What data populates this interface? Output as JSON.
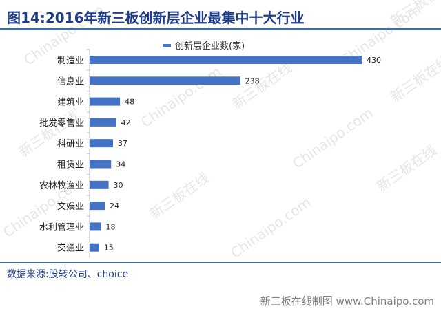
{
  "header": {
    "title": "图14:2016年新三板创新层企业最集中十大行业"
  },
  "source": {
    "text": "数据来源:股转公司、choice"
  },
  "footer": {
    "text": "新三板在线制图 www.Chinaipo.com"
  },
  "watermark": {
    "text_cn": "新三板在线",
    "text_en": "Chinaipo.com"
  },
  "colors": {
    "bar": "#4472C4",
    "title": "#1F3C88",
    "rule": "#3C6CB4"
  },
  "chart_data": {
    "type": "bar",
    "orientation": "horizontal",
    "categories": [
      "制造业",
      "信息业",
      "建筑业",
      "批发零售业",
      "科研业",
      "租赁业",
      "农林牧渔业",
      "文娱业",
      "水利管理业",
      "交通业"
    ],
    "series": [
      {
        "name": "创新层企业数(家)",
        "values": [
          430,
          238,
          48,
          42,
          37,
          34,
          30,
          24,
          18,
          15
        ]
      }
    ],
    "xlim": [
      0,
      430
    ],
    "legend": "top",
    "grid": false,
    "data_labels": true
  }
}
